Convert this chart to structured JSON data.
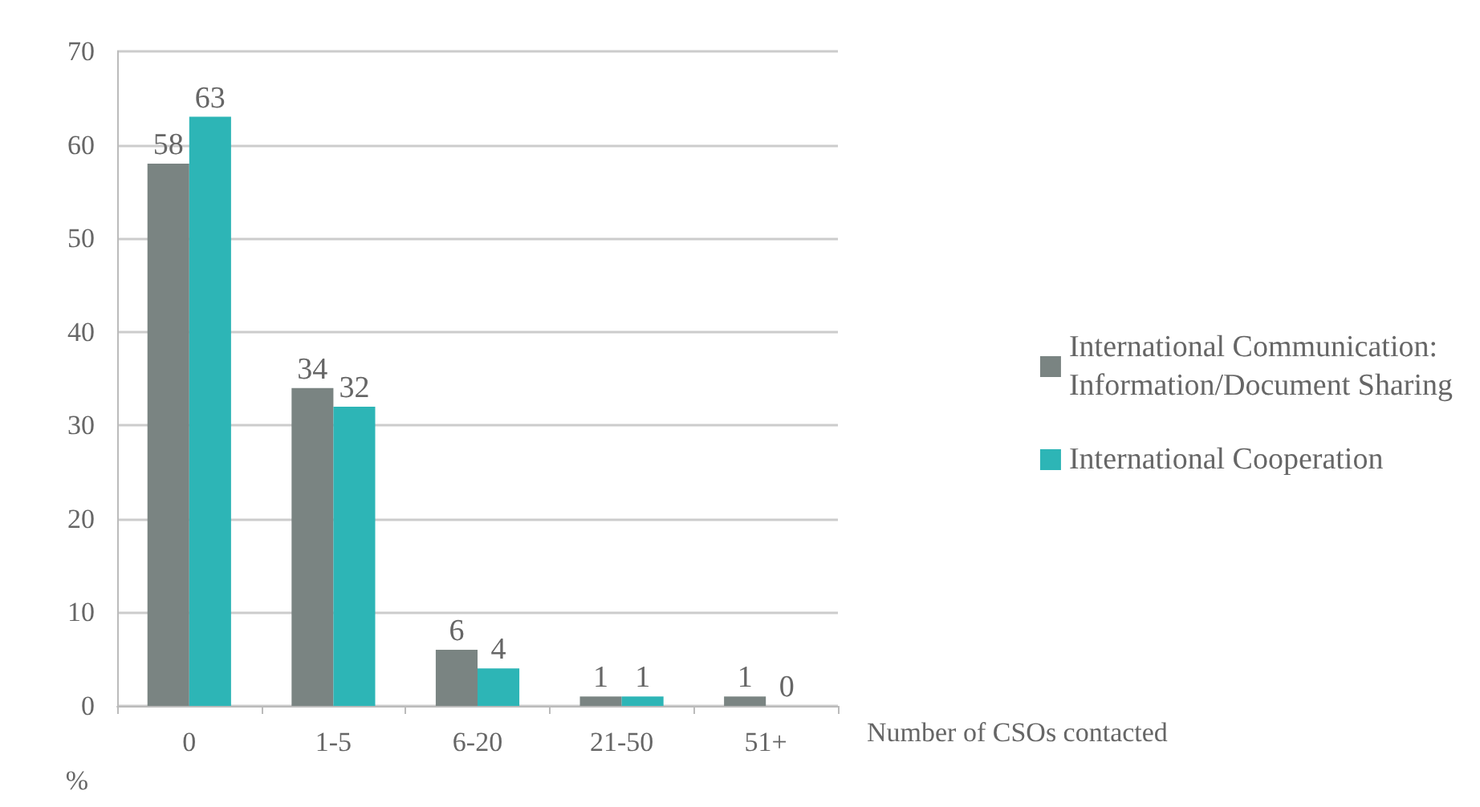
{
  "chart_data": {
    "type": "bar",
    "xlabel": "Number of CSOs contacted",
    "ylabel": "%",
    "categories": [
      "0",
      "1-5",
      "6-20",
      "21-50",
      "51+"
    ],
    "series": [
      {
        "name": "International Communication:\nInformation/Document Sharing",
        "color": "#7a8482",
        "values": [
          58,
          34,
          6,
          1,
          1
        ]
      },
      {
        "name": "International Cooperation",
        "color": "#2db5b6",
        "values": [
          63,
          32,
          4,
          1,
          0
        ]
      }
    ],
    "ylim": [
      0,
      70
    ],
    "yticks": [
      0,
      10,
      20,
      30,
      40,
      50,
      60,
      70
    ],
    "grid": "y",
    "legend": "right",
    "data_labels": true
  }
}
